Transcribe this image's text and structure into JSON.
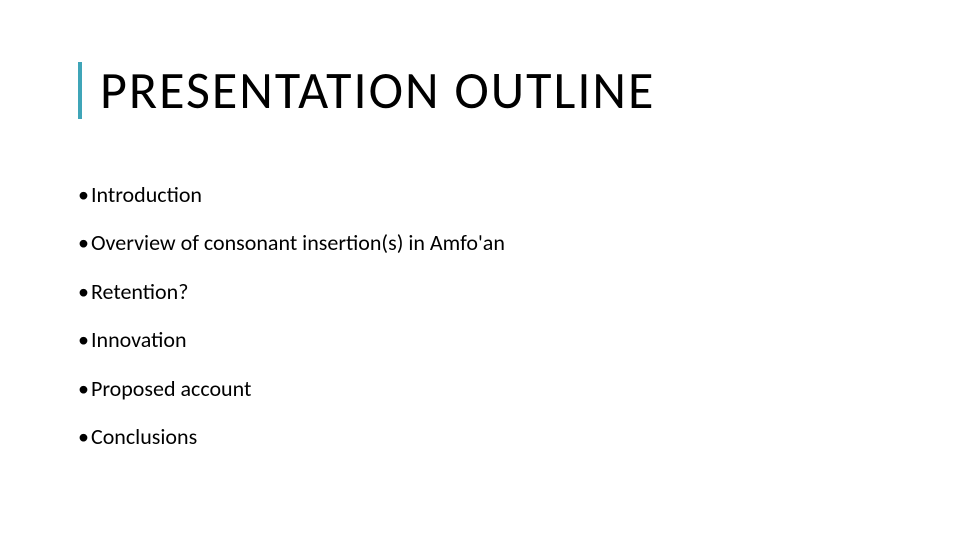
{
  "slide": {
    "title": "PRESENTATION OUTLINE",
    "title_fontsize": 52,
    "title_letter_spacing": 2,
    "title_border_color": "#3fa5b8",
    "title_border_width": 4,
    "bullets": [
      "Introduction",
      "Overview of consonant insertion(s) in Amfo'an",
      "Retention?",
      "Innovation",
      "Proposed account",
      "Conclusions"
    ],
    "bullet_fontsize": 22,
    "bullet_color": "#000000",
    "bullet_marker": "•",
    "background_color": "#ffffff",
    "text_color": "#000000"
  }
}
